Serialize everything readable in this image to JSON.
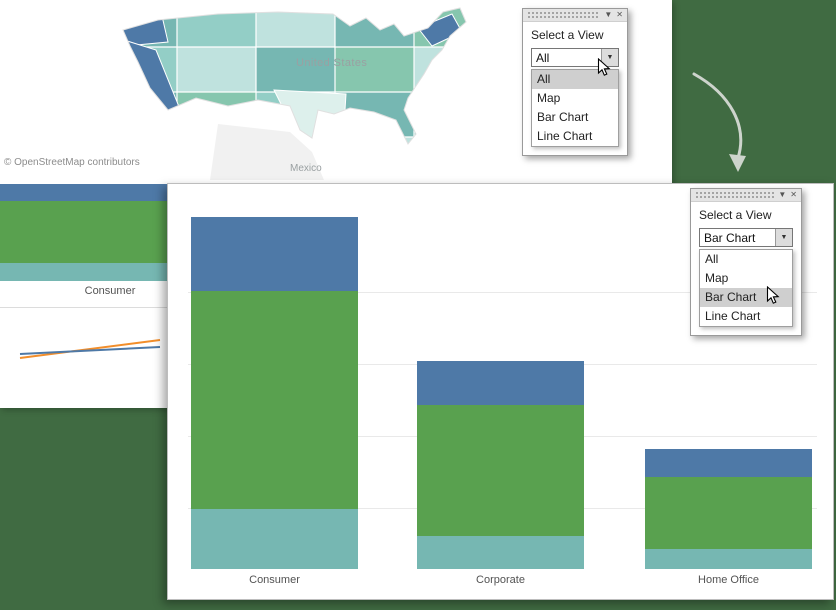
{
  "window": {
    "background_color": "#406b42"
  },
  "map_panel": {
    "attribution": "© OpenStreetMap contributors",
    "country_label": "United States",
    "mexico_label": "Mexico",
    "palette": {
      "dark_blue": "#4e79a7",
      "teal": "#76b7b2",
      "mid_teal": "#93cec6",
      "light_teal": "#bfe2de",
      "pale": "#ddf0ec",
      "green_teal": "#86c6ae"
    }
  },
  "param_control_top": {
    "title": "Select a View",
    "selected_value": "All",
    "options": [
      "All",
      "Map",
      "Bar Chart",
      "Line Chart"
    ],
    "highlighted_index": 0
  },
  "param_control_front": {
    "title": "Select a View",
    "selected_value": "Bar Chart",
    "options": [
      "All",
      "Map",
      "Bar Chart",
      "Line Chart"
    ],
    "highlighted_index": 2
  },
  "back_panel": {
    "bar_label": "Consumer",
    "bar_segments": [
      {
        "name": "blue",
        "color": "#4e79a7",
        "height": 17
      },
      {
        "name": "green",
        "color": "#59a14f",
        "height": 62
      },
      {
        "name": "teal",
        "color": "#76b7b2",
        "height": 18
      }
    ]
  },
  "chart_data": [
    {
      "type": "bar",
      "stacked": true,
      "title": "",
      "xlabel": "",
      "ylabel": "",
      "categories": [
        "Consumer",
        "Corporate",
        "Home Office"
      ],
      "series": [
        {
          "name": "teal-segment",
          "color": "#76b7b2",
          "values": [
            60,
            33,
            20
          ]
        },
        {
          "name": "green-segment",
          "color": "#59a14f",
          "values": [
            218,
            131,
            72
          ]
        },
        {
          "name": "blue-segment",
          "color": "#4e79a7",
          "values": [
            74,
            44,
            28
          ]
        }
      ],
      "legend": "none",
      "grid": "horizontal"
    },
    {
      "type": "line",
      "title": "",
      "series": [
        {
          "name": "orange-line",
          "color": "#f28e2b",
          "points": [
            [
              8,
              40
            ],
            [
              148,
              22
            ]
          ]
        },
        {
          "name": "blue-line",
          "color": "#4e79a7",
          "points": [
            [
              8,
              36
            ],
            [
              148,
              29
            ]
          ]
        }
      ],
      "legend": "none"
    }
  ]
}
